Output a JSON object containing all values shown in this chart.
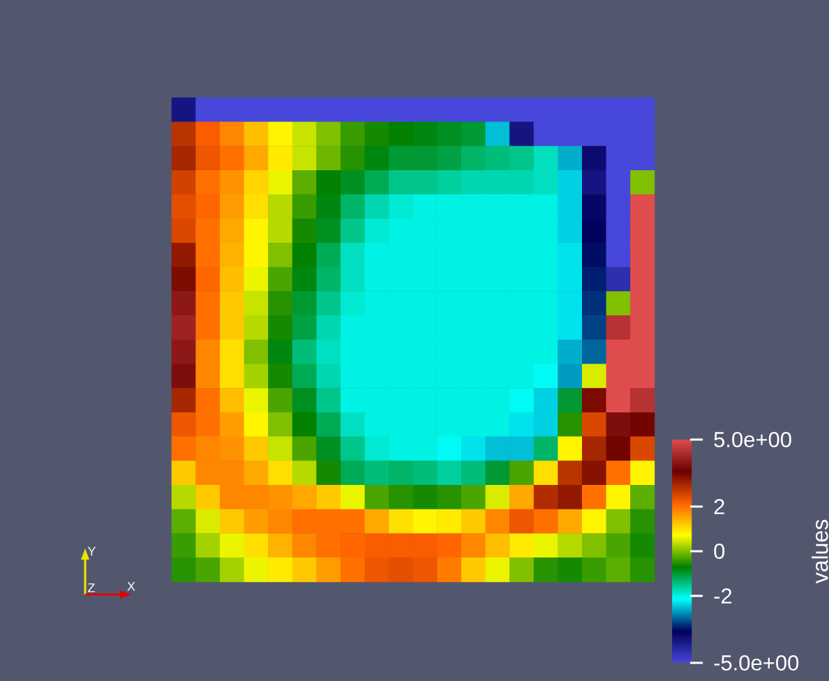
{
  "chart_data": {
    "type": "heatmap",
    "categories": [
      null,
      null,
      null,
      null,
      null,
      null,
      null,
      null,
      null,
      null,
      null,
      null,
      null,
      null,
      null,
      null,
      null,
      null,
      null,
      null
    ],
    "y_categories": [
      null,
      null,
      null,
      null,
      null,
      null,
      null,
      null,
      null,
      null,
      null,
      null,
      null,
      null,
      null,
      null,
      null,
      null,
      null,
      null
    ],
    "cells": [
      [
        -4,
        -5,
        -5,
        -5,
        -5,
        -5,
        -5,
        -5,
        -5,
        -5,
        -5,
        -5,
        -5,
        -5,
        -5,
        -5,
        -5,
        -5,
        -5,
        -5
      ],
      [
        2.8,
        2.2,
        1.8,
        1.3,
        0.8,
        0.4,
        0,
        -0.4,
        -0.6,
        -0.7,
        -0.8,
        -0.9,
        -1.0,
        -2.5,
        -4.0,
        -5,
        -5,
        -5,
        -5,
        -5
      ],
      [
        3.0,
        2.3,
        2.0,
        1.5,
        0.9,
        0.4,
        -0.1,
        -0.5,
        -0.8,
        -1.0,
        -1.0,
        -1.1,
        -1.3,
        -1.4,
        -1.5,
        -1.8,
        -2.6,
        -3.8,
        -5,
        -5
      ],
      [
        2.6,
        2.0,
        1.7,
        1.1,
        0.6,
        -0.2,
        -0.7,
        -0.9,
        -1.2,
        -1.5,
        -1.5,
        -1.6,
        -1.7,
        -1.7,
        -1.7,
        -1.8,
        -2.4,
        -4.0,
        -5,
        0
      ],
      [
        2.4,
        2.1,
        1.6,
        1.0,
        0.3,
        -0.4,
        -0.8,
        -1.3,
        -1.7,
        -1.9,
        -2.0,
        -2.0,
        -2.0,
        -2.0,
        -2.0,
        -2.0,
        -2.4,
        -3.7,
        -5,
        5
      ],
      [
        2.5,
        2.0,
        1.5,
        0.8,
        0.3,
        -0.6,
        -0.9,
        -1.5,
        -1.9,
        -2.0,
        -2.0,
        -2.0,
        -2.0,
        -2.0,
        -2.0,
        -2.0,
        -2.4,
        -3.6,
        -5,
        5
      ],
      [
        3.2,
        2.0,
        1.4,
        0.8,
        0.0,
        -0.7,
        -1.2,
        -1.8,
        -2.0,
        -2.0,
        -2.0,
        -2.0,
        -2.0,
        -2.0,
        -2.0,
        -2.0,
        -2.3,
        -3.5,
        -5,
        5
      ],
      [
        3.4,
        2.1,
        1.3,
        0.6,
        -0.3,
        -0.8,
        -1.3,
        -1.8,
        -2.0,
        -2.0,
        -2.0,
        -2.0,
        -2.0,
        -2.0,
        -2.0,
        -2.0,
        -2.3,
        -3.4,
        -4.5,
        5
      ],
      [
        4.0,
        2.0,
        1.2,
        0.4,
        -0.5,
        -1.0,
        -1.5,
        -1.9,
        -2.0,
        -2.0,
        -2.0,
        -2.0,
        -2.0,
        -2.0,
        -2.0,
        -2.0,
        -2.3,
        -3.3,
        0,
        5
      ],
      [
        4.2,
        2.0,
        1.2,
        0.3,
        -0.6,
        -1.1,
        -1.7,
        -2.0,
        -2.0,
        -2.0,
        -2.0,
        -2.0,
        -2.0,
        -2.0,
        -2.0,
        -2.0,
        -2.3,
        -3.2,
        4.5,
        5
      ],
      [
        4.0,
        1.8,
        1.0,
        0.0,
        -0.8,
        -1.4,
        -1.8,
        -2.0,
        -2.0,
        -2.0,
        -2.0,
        -2.0,
        -2.0,
        -2.0,
        -2.0,
        -2.0,
        -2.6,
        -3.0,
        5,
        5
      ],
      [
        3.8,
        1.8,
        1.0,
        0.2,
        -0.6,
        -1.2,
        -1.7,
        -2.0,
        -2.0,
        -2.0,
        -2.0,
        -2.0,
        -2.0,
        -2.0,
        -2.0,
        -2.1,
        -2.7,
        0.5,
        5,
        5
      ],
      [
        3.0,
        2.0,
        1.3,
        0.6,
        -0.3,
        -0.9,
        -1.5,
        -2.0,
        -2.0,
        -2.0,
        -2.0,
        -2.0,
        -2.0,
        -2.0,
        -2.1,
        -2.4,
        -1.0,
        3.4,
        5,
        4.5
      ],
      [
        2.3,
        2.0,
        1.6,
        0.8,
        0.0,
        -0.7,
        -1.2,
        -1.8,
        -2.0,
        -2.0,
        -2.0,
        -2.0,
        -2.0,
        -2.0,
        -2.3,
        -2.4,
        -0.5,
        2.5,
        3.8,
        3.5
      ],
      [
        2.0,
        1.8,
        1.7,
        1.2,
        0.4,
        -0.3,
        -0.9,
        -1.5,
        -1.9,
        -2.0,
        -2.0,
        -2.1,
        -2.3,
        -2.5,
        -2.5,
        -1.3,
        0.8,
        3.0,
        3.5,
        2.5
      ],
      [
        1.2,
        1.8,
        1.8,
        1.5,
        1.0,
        0.3,
        -0.6,
        -1.2,
        -1.4,
        -1.3,
        -1.4,
        -1.6,
        -1.4,
        -1.0,
        -0.3,
        1.0,
        2.8,
        3.3,
        2.0,
        0.8
      ],
      [
        0.3,
        1.2,
        1.8,
        1.8,
        1.7,
        1.5,
        1.2,
        0.6,
        -0.3,
        -0.5,
        -0.6,
        -0.5,
        -0.3,
        0.5,
        1.5,
        2.9,
        3.2,
        2.0,
        0.8,
        -0.2
      ],
      [
        -0.2,
        0.5,
        1.2,
        1.6,
        1.8,
        2.0,
        2.0,
        2.0,
        1.5,
        1.0,
        0.8,
        0.9,
        1.2,
        1.8,
        2.3,
        2.0,
        1.5,
        0.8,
        0.0,
        -0.5
      ],
      [
        -0.4,
        0.2,
        0.6,
        1.0,
        1.4,
        1.8,
        2.0,
        2.1,
        2.2,
        2.2,
        2.2,
        2.1,
        1.8,
        1.3,
        0.9,
        0.6,
        0.3,
        0.0,
        -0.3,
        -0.6
      ],
      [
        -0.5,
        -0.3,
        0.2,
        0.6,
        0.9,
        1.2,
        1.6,
        2.0,
        2.3,
        2.4,
        2.3,
        1.9,
        1.2,
        0.6,
        0.0,
        -0.5,
        -0.6,
        -0.4,
        -0.2,
        -0.5
      ]
    ],
    "clim": [
      -5,
      5
    ],
    "cticks": [
      {
        "value": -5,
        "label": "-5.0e+00"
      },
      -2,
      0,
      2,
      {
        "value": 5,
        "label": "5.0e+00"
      }
    ],
    "clabel": "values",
    "annotations": [
      "Y",
      "Z",
      "X"
    ]
  }
}
